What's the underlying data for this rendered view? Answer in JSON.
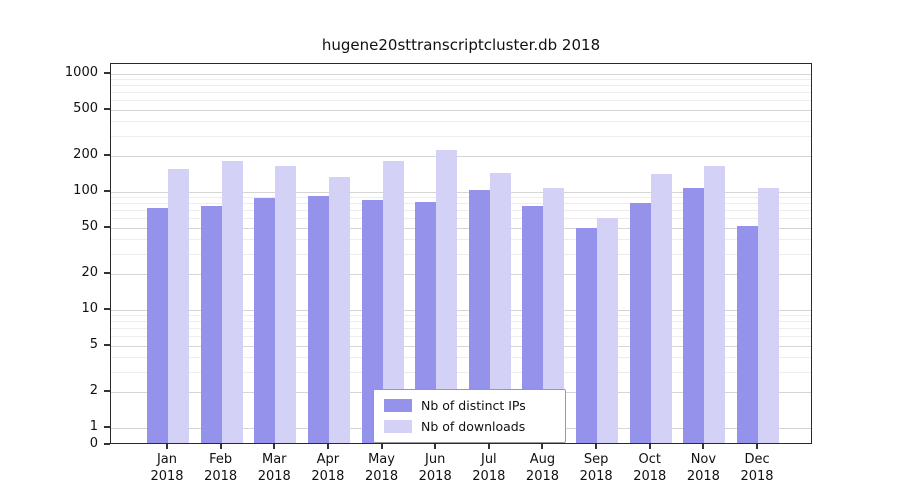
{
  "chart_data": {
    "type": "bar",
    "title": "hugene20sttranscriptcluster.db 2018",
    "categories": [
      "Jan",
      "Feb",
      "Mar",
      "Apr",
      "May",
      "Jun",
      "Jul",
      "Aug",
      "Sep",
      "Oct",
      "Nov",
      "Dec"
    ],
    "year": "2018",
    "series": [
      {
        "name": "Nb of distinct IPs",
        "color": "#9492ea",
        "values": [
          70,
          73,
          85,
          89,
          82,
          79,
          100,
          73,
          48,
          78,
          105,
          50
        ]
      },
      {
        "name": "Nb of downloads",
        "color": "#d3d2f6",
        "values": [
          150,
          175,
          160,
          130,
          175,
          220,
          140,
          105,
          58,
          138,
          160,
          105
        ]
      }
    ],
    "yscale": "log",
    "yticks": [
      0,
      1,
      2,
      5,
      10,
      20,
      50,
      100,
      200,
      500,
      1000
    ],
    "xlabel": "",
    "ylabel": "",
    "grid": true,
    "legend_position": "bottom-center"
  },
  "colors": {
    "bar_distinct_ips": "#9492ea",
    "bar_downloads": "#d3d2f6",
    "major_grid": "#d6d6d6",
    "minor_grid": "#ededed",
    "axis": "#2a2a2a",
    "text": "#111111",
    "background": "#ffffff"
  }
}
